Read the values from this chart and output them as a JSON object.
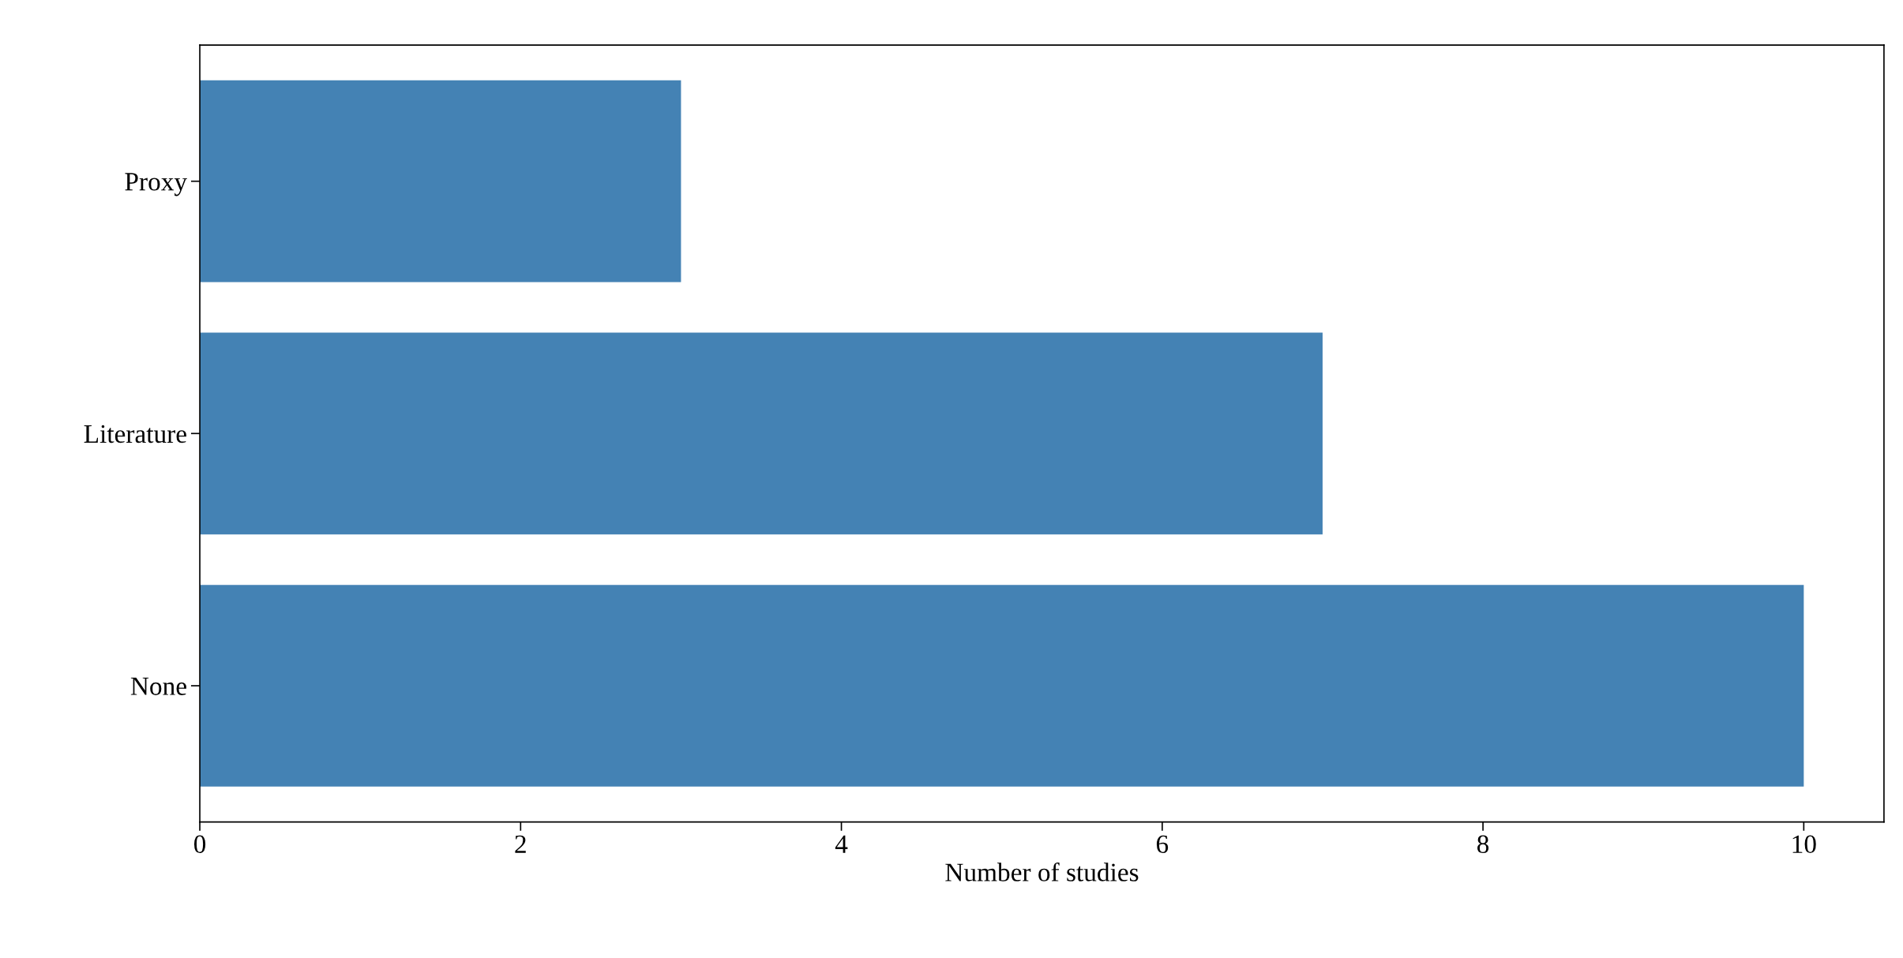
{
  "chart_data": {
    "type": "bar",
    "orientation": "horizontal",
    "categories": [
      "Proxy",
      "Literature",
      "None"
    ],
    "values": [
      3,
      7,
      10
    ],
    "color": "#4482b4",
    "xlabel": "Number of studies",
    "xlim": [
      0,
      10.5
    ],
    "xticks": [
      0,
      2,
      4,
      6,
      8,
      10
    ],
    "grid": false,
    "legend": false
  }
}
